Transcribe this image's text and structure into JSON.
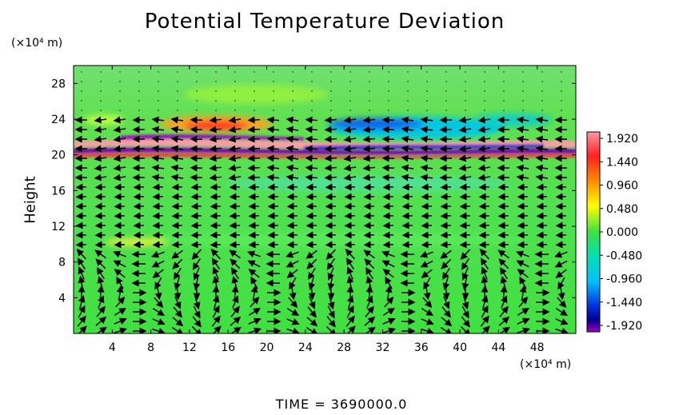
{
  "chart_data": {
    "type": "heatmap",
    "title": "Potential Temperature Deviation",
    "xlabel": "",
    "ylabel": "Height",
    "x_unit": "(×10⁴ m)",
    "y_unit": "(×10⁴ m)",
    "xlim": [
      0,
      52
    ],
    "ylim": [
      0,
      30
    ],
    "x_ticks": [
      4,
      8,
      12,
      16,
      20,
      24,
      28,
      32,
      36,
      40,
      44,
      48
    ],
    "y_ticks": [
      4,
      8,
      12,
      16,
      20,
      24,
      28
    ],
    "colorbar": {
      "min": -1.92,
      "max": 1.92,
      "ticks": [
        "1.920",
        "1.440",
        "0.960",
        "0.480",
        "0.000",
        "-0.480",
        "-0.960",
        "-1.440",
        "-1.920"
      ],
      "colors": [
        "#ff9aa8",
        "#ff2020",
        "#ff9000",
        "#ffff00",
        "#40e040",
        "#00e0b0",
        "#00c0ff",
        "#0040ff",
        "#000090",
        "#a000c0"
      ]
    },
    "overlay": "wind vectors",
    "footer": "TIME  =  3690000.0"
  }
}
